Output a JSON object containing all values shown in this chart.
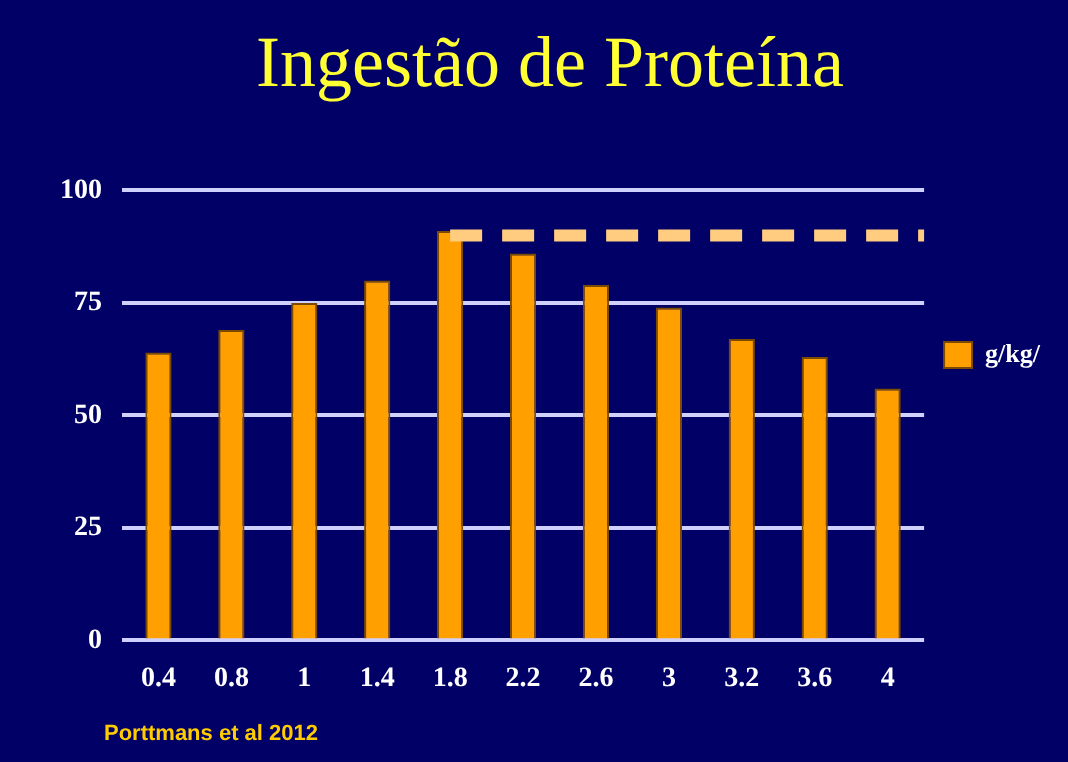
{
  "chart_data": {
    "type": "bar",
    "title": "Ingestão de Proteína",
    "categories": [
      "0.4",
      "0.8",
      "1",
      "1.4",
      "1.8",
      "2.2",
      "2.6",
      "3",
      "3.2",
      "3.6",
      "4"
    ],
    "series": [
      {
        "name": "g/kg/",
        "color": "#ffa000",
        "values": [
          64,
          69,
          75,
          80,
          91,
          86,
          79,
          74,
          67,
          63,
          56
        ]
      }
    ],
    "ylim": [
      0,
      100
    ],
    "yticks": [
      0,
      25,
      50,
      75,
      100
    ],
    "grid": "y",
    "legend": "right",
    "ref_lines": [
      {
        "axis": "y",
        "value": 90,
        "color": "#ffcc80",
        "line_style": "dashed"
      }
    ],
    "annotations": [
      "Porttmans et al 2012"
    ]
  }
}
